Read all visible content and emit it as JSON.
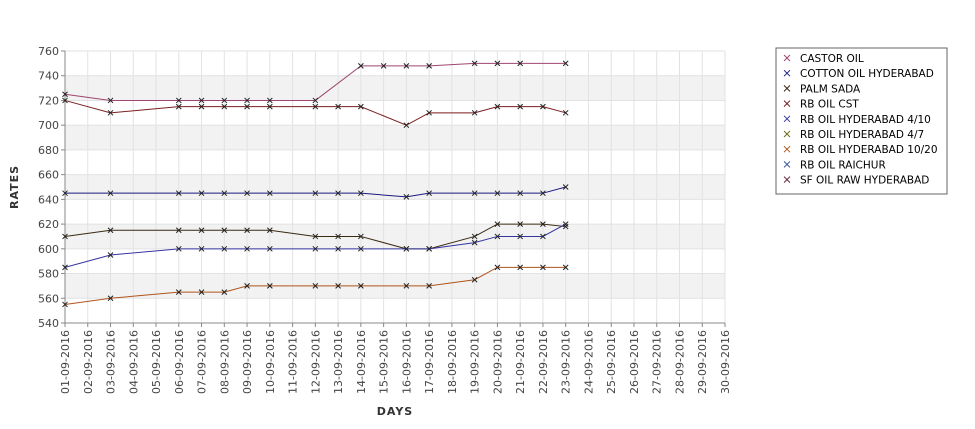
{
  "chart_data": {
    "type": "line",
    "title": "",
    "xlabel": "DAYS",
    "ylabel": "RATES",
    "ylim": [
      540,
      760
    ],
    "yticks": [
      540,
      560,
      580,
      600,
      620,
      640,
      660,
      680,
      700,
      720,
      740,
      760
    ],
    "grid": true,
    "legend_position": "right",
    "categories": [
      "01-09-2016",
      "02-09-2016",
      "03-09-2016",
      "04-09-2016",
      "05-09-2016",
      "06-09-2016",
      "07-09-2016",
      "08-09-2016",
      "09-09-2016",
      "10-09-2016",
      "11-09-2016",
      "12-09-2016",
      "13-09-2016",
      "14-09-2016",
      "15-09-2016",
      "16-09-2016",
      "17-09-2016",
      "18-09-2016",
      "19-09-2016",
      "20-09-2016",
      "21-09-2016",
      "22-09-2016",
      "23-09-2016",
      "24-09-2016",
      "25-09-2016",
      "26-09-2016",
      "27-09-2016",
      "28-09-2016",
      "29-09-2016",
      "30-09-2016"
    ],
    "series": [
      {
        "name": "CASTOR OIL",
        "color": "#a0466e",
        "values": [
          725,
          null,
          720,
          null,
          null,
          720,
          720,
          720,
          720,
          720,
          null,
          720,
          null,
          748,
          748,
          748,
          748,
          null,
          750,
          750,
          750,
          null,
          750,
          null,
          null,
          null,
          null,
          null,
          null,
          null
        ]
      },
      {
        "name": "COTTON OIL HYDERABAD",
        "color": "#1a1a80",
        "values": [
          645,
          null,
          645,
          null,
          null,
          645,
          645,
          645,
          645,
          645,
          null,
          645,
          645,
          645,
          null,
          642,
          645,
          null,
          645,
          645,
          645,
          645,
          650,
          null,
          null,
          null,
          null,
          null,
          null,
          null
        ]
      },
      {
        "name": "PALM SADA",
        "color": "#3a2a10",
        "values": [
          610,
          null,
          615,
          null,
          null,
          615,
          615,
          615,
          615,
          615,
          null,
          610,
          610,
          610,
          null,
          600,
          600,
          null,
          610,
          620,
          620,
          620,
          618,
          null,
          null,
          null,
          null,
          null,
          null,
          null
        ]
      },
      {
        "name": "RB OIL CST",
        "color": "#7a1f1f",
        "values": [
          720,
          null,
          710,
          null,
          null,
          715,
          715,
          715,
          715,
          715,
          null,
          715,
          715,
          715,
          null,
          700,
          710,
          null,
          710,
          715,
          715,
          715,
          710,
          null,
          null,
          null,
          null,
          null,
          null,
          null
        ]
      },
      {
        "name": "RB OIL HYDERABAD  4/10",
        "color": "#3535a0",
        "values": [
          585,
          null,
          595,
          null,
          null,
          600,
          600,
          600,
          600,
          600,
          null,
          600,
          600,
          600,
          null,
          600,
          600,
          null,
          605,
          610,
          610,
          610,
          620,
          null,
          null,
          null,
          null,
          null,
          null,
          null
        ]
      },
      {
        "name": "RB OIL HYDERABAD  4/7",
        "color": "#6b6b1e",
        "values": [
          null,
          null,
          null,
          null,
          null,
          null,
          null,
          null,
          null,
          null,
          null,
          null,
          null,
          null,
          null,
          null,
          null,
          null,
          null,
          null,
          null,
          null,
          null,
          null,
          null,
          null,
          null,
          null,
          null,
          null
        ]
      },
      {
        "name": "RB OIL HYDERABAD 10/20",
        "color": "#b0541a",
        "values": [
          555,
          null,
          560,
          null,
          null,
          565,
          565,
          565,
          570,
          570,
          null,
          570,
          570,
          570,
          null,
          570,
          570,
          null,
          575,
          585,
          585,
          585,
          585,
          null,
          null,
          null,
          null,
          null,
          null,
          null
        ]
      },
      {
        "name": "RB OIL RAICHUR",
        "color": "#3a5a9a",
        "values": [
          null,
          null,
          null,
          null,
          null,
          null,
          null,
          null,
          null,
          null,
          null,
          null,
          null,
          null,
          null,
          null,
          null,
          null,
          null,
          null,
          null,
          null,
          null,
          null,
          null,
          null,
          null,
          null,
          null,
          null
        ]
      },
      {
        "name": "SF OIL RAW HYDERABAD",
        "color": "#6a2a40",
        "values": [
          null,
          null,
          null,
          null,
          null,
          null,
          null,
          null,
          null,
          null,
          null,
          null,
          null,
          null,
          null,
          null,
          null,
          null,
          null,
          null,
          null,
          null,
          null,
          null,
          null,
          null,
          null,
          null,
          null,
          null
        ]
      }
    ]
  }
}
